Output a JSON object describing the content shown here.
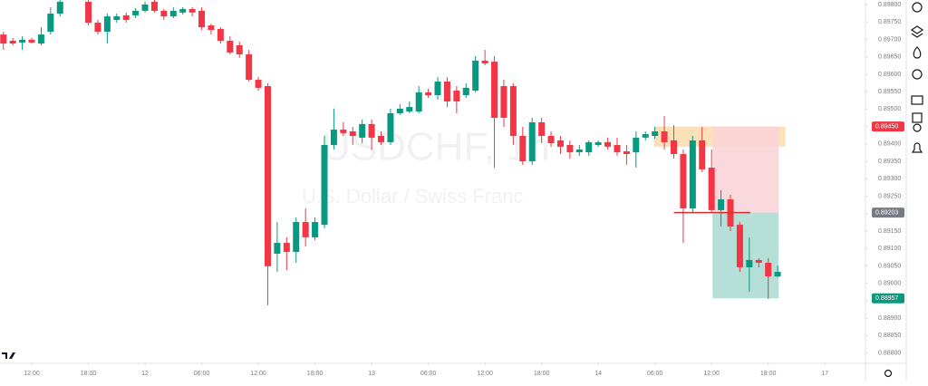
{
  "chart_data": {
    "type": "candlestick",
    "watermark_title": "USDCHF, 1h",
    "watermark_subtitle": "U.S. Dollar / Swiss Franc",
    "up_color": "#089981",
    "down_color": "#f23645",
    "x": [
      -3,
      -2,
      -1,
      0,
      1,
      2,
      3,
      6,
      7,
      8,
      9,
      10,
      11,
      12,
      13,
      14,
      15,
      16,
      17,
      18,
      19,
      20,
      21,
      22,
      23,
      24,
      25,
      26,
      27,
      28,
      29,
      30,
      31,
      32,
      33,
      34,
      35,
      36,
      37,
      38,
      39,
      40,
      41,
      42,
      43,
      44,
      45,
      46,
      47,
      48,
      49,
      50,
      51,
      52,
      53,
      54,
      55,
      56,
      57,
      58,
      59,
      60,
      61,
      62,
      63,
      64,
      65,
      66,
      67,
      68,
      69,
      70,
      71,
      72,
      73,
      74,
      75,
      76,
      77,
      78,
      79
    ],
    "open": [
      0.89714,
      0.89696,
      0.89691,
      0.89699,
      0.89688,
      0.89722,
      0.89774,
      0.89808,
      0.89748,
      0.89722,
      0.89756,
      0.89769,
      0.89769,
      0.89782,
      0.89808,
      0.89782,
      0.89766,
      0.89777,
      0.89787,
      0.89782,
      0.8974,
      0.8973,
      0.89696,
      0.89683,
      0.89657,
      0.89584,
      0.89566,
      0.89085,
      0.89116,
      0.8909,
      0.89176,
      0.89132,
      0.89168,
      0.89397,
      0.89441,
      0.89436,
      0.89418,
      0.89457,
      0.89423,
      0.89405,
      0.89488,
      0.89493,
      0.89493,
      0.89548,
      0.8954,
      0.89579,
      0.89553,
      0.8954,
      0.89553,
      0.89639,
      0.89636,
      0.89566,
      0.89566,
      0.89423,
      0.8935,
      0.89462,
      0.89423,
      0.8941,
      0.89397,
      0.89376,
      0.89376,
      0.89397,
      0.89405,
      0.89397,
      0.89379,
      0.89376,
      0.89418,
      0.89423,
      0.89436,
      0.8941,
      0.89371,
      0.89215,
      0.8941,
      0.89332,
      0.8921,
      0.89241,
      0.89168,
      0.89046,
      0.89067,
      0.89059,
      0.8902
    ],
    "high": [
      0.89722,
      0.89704,
      0.89709,
      0.89704,
      0.89735,
      0.89792,
      0.89813,
      0.89813,
      0.89756,
      0.89774,
      0.89774,
      0.89777,
      0.8979,
      0.89808,
      0.89813,
      0.89787,
      0.89792,
      0.89792,
      0.89792,
      0.89792,
      0.89745,
      0.89735,
      0.89709,
      0.89693,
      0.8967,
      0.89592,
      0.89574,
      0.89176,
      0.89132,
      0.89189,
      0.89215,
      0.89189,
      0.89423,
      0.89501,
      0.89462,
      0.89449,
      0.8947,
      0.8947,
      0.89436,
      0.89501,
      0.89514,
      0.89522,
      0.89566,
      0.89558,
      0.89592,
      0.89592,
      0.89566,
      0.89574,
      0.89652,
      0.8967,
      0.89652,
      0.89584,
      0.89574,
      0.89449,
      0.89475,
      0.89475,
      0.89436,
      0.89423,
      0.8941,
      0.89397,
      0.8941,
      0.8941,
      0.89418,
      0.89418,
      0.89397,
      0.89436,
      0.89436,
      0.89449,
      0.8948,
      0.89454,
      0.89384,
      0.89423,
      0.89449,
      0.89384,
      0.89267,
      0.89254,
      0.89176,
      0.89132,
      0.89072,
      0.89072,
      0.89051
    ],
    "low": [
      0.8967,
      0.89683,
      0.8967,
      0.89688,
      0.89683,
      0.89714,
      0.89766,
      0.8974,
      0.89714,
      0.89688,
      0.89748,
      0.89748,
      0.89761,
      0.89777,
      0.89777,
      0.89756,
      0.89761,
      0.89771,
      0.89766,
      0.89727,
      0.89714,
      0.89688,
      0.89657,
      0.89647,
      0.89579,
      0.89553,
      0.88937,
      0.89033,
      0.89038,
      0.89059,
      0.89106,
      0.89124,
      0.89158,
      0.89384,
      0.89423,
      0.89397,
      0.89402,
      0.89384,
      0.89397,
      0.89397,
      0.89483,
      0.89488,
      0.89488,
      0.89532,
      0.89527,
      0.89506,
      0.89488,
      0.89532,
      0.89548,
      0.89626,
      0.89332,
      0.89449,
      0.89397,
      0.8934,
      0.8934,
      0.89402,
      0.89392,
      0.89371,
      0.89358,
      0.89366,
      0.89366,
      0.89392,
      0.89384,
      0.89366,
      0.8934,
      0.89332,
      0.8941,
      0.89415,
      0.89384,
      0.89358,
      0.89116,
      0.89202,
      0.89319,
      0.89202,
      0.89163,
      0.8915,
      0.89033,
      0.88976,
      0.89046,
      0.88955,
      0.89017
    ],
    "close": [
      0.89688,
      0.89688,
      0.89699,
      0.89691,
      0.89714,
      0.89774,
      0.89808,
      0.89748,
      0.89722,
      0.89766,
      0.89766,
      0.89756,
      0.89782,
      0.898,
      0.89782,
      0.89766,
      0.89782,
      0.89787,
      0.89777,
      0.89735,
      0.89727,
      0.89696,
      0.89662,
      0.89657,
      0.89584,
      0.89561,
      0.89049,
      0.89116,
      0.8909,
      0.89176,
      0.89132,
      0.89176,
      0.89397,
      0.89441,
      0.89431,
      0.89423,
      0.89457,
      0.89418,
      0.89405,
      0.89488,
      0.89501,
      0.89506,
      0.89548,
      0.8954,
      0.89579,
      0.89522,
      0.89522,
      0.89561,
      0.89639,
      0.89631,
      0.89475,
      0.89475,
      0.89423,
      0.8935,
      0.89462,
      0.89423,
      0.89402,
      0.89392,
      0.89376,
      0.89384,
      0.89405,
      0.89405,
      0.89392,
      0.89376,
      0.89371,
      0.89418,
      0.89428,
      0.89436,
      0.89405,
      0.89371,
      0.89215,
      0.8941,
      0.89327,
      0.8921,
      0.89241,
      0.89163,
      0.89046,
      0.89067,
      0.89059,
      0.8902,
      0.89033
    ],
    "xlim": [
      -3.36,
      88.3
    ],
    "ylim": [
      0.88773,
      0.89813
    ],
    "xticks": [
      {
        "value": 0,
        "label": "12:00"
      },
      {
        "value": 6,
        "label": "18:00"
      },
      {
        "value": 12,
        "label": "12"
      },
      {
        "value": 18,
        "label": "06:00"
      },
      {
        "value": 24,
        "label": "12:00"
      },
      {
        "value": 30,
        "label": "18:00"
      },
      {
        "value": 36,
        "label": "13"
      },
      {
        "value": 42,
        "label": "06:00"
      },
      {
        "value": 48,
        "label": "12:00"
      },
      {
        "value": 54,
        "label": "18:00"
      },
      {
        "value": 60,
        "label": "14"
      },
      {
        "value": 66,
        "label": "06:00"
      },
      {
        "value": 72,
        "label": "12:00"
      },
      {
        "value": 78,
        "label": "18:00"
      },
      {
        "value": 84,
        "label": "17"
      }
    ],
    "yticks": [
      {
        "value": 0.898,
        "label": "0.89800"
      },
      {
        "value": 0.8975,
        "label": "0.89750"
      },
      {
        "value": 0.897,
        "label": "0.89700"
      },
      {
        "value": 0.8965,
        "label": "0.89650"
      },
      {
        "value": 0.896,
        "label": "0.89600"
      },
      {
        "value": 0.8955,
        "label": "0.89550"
      },
      {
        "value": 0.895,
        "label": "0.89500"
      },
      {
        "value": 0.8945,
        "label": "0.89450"
      },
      {
        "value": 0.894,
        "label": "0.89400"
      },
      {
        "value": 0.8935,
        "label": "0.89350"
      },
      {
        "value": 0.893,
        "label": "0.89300"
      },
      {
        "value": 0.8925,
        "label": "0.89250"
      },
      {
        "value": 0.892,
        "label": "0.89200"
      },
      {
        "value": 0.8915,
        "label": "0.89150"
      },
      {
        "value": 0.891,
        "label": "0.89100"
      },
      {
        "value": 0.8905,
        "label": "0.89050"
      },
      {
        "value": 0.89,
        "label": "0.89000"
      },
      {
        "value": 0.8895,
        "label": "0.88950"
      },
      {
        "value": 0.889,
        "label": "0.88900"
      },
      {
        "value": 0.8885,
        "label": "0.88850"
      },
      {
        "value": 0.888,
        "label": "0.88800"
      }
    ],
    "zone": {
      "x": [
        65.9,
        79.8
      ],
      "y": [
        0.89392,
        0.8945
      ],
      "color": "#fbd9a6"
    },
    "position": {
      "x": [
        72.1,
        79.1
      ],
      "entry_x": [
        68,
        76.1
      ],
      "stop": 0.8945,
      "entry": 0.89203,
      "target": 0.88957,
      "stop_color": "#f9d2d6",
      "target_color": "#a9dbd0"
    },
    "price_labels": [
      {
        "value": 0.8945,
        "label": "0.89450",
        "color": "#f23645"
      },
      {
        "value": 0.89203,
        "label": "0.89203",
        "color": "#787b86"
      },
      {
        "value": 0.88957,
        "label": "0.88957",
        "color": "#089981"
      }
    ]
  }
}
